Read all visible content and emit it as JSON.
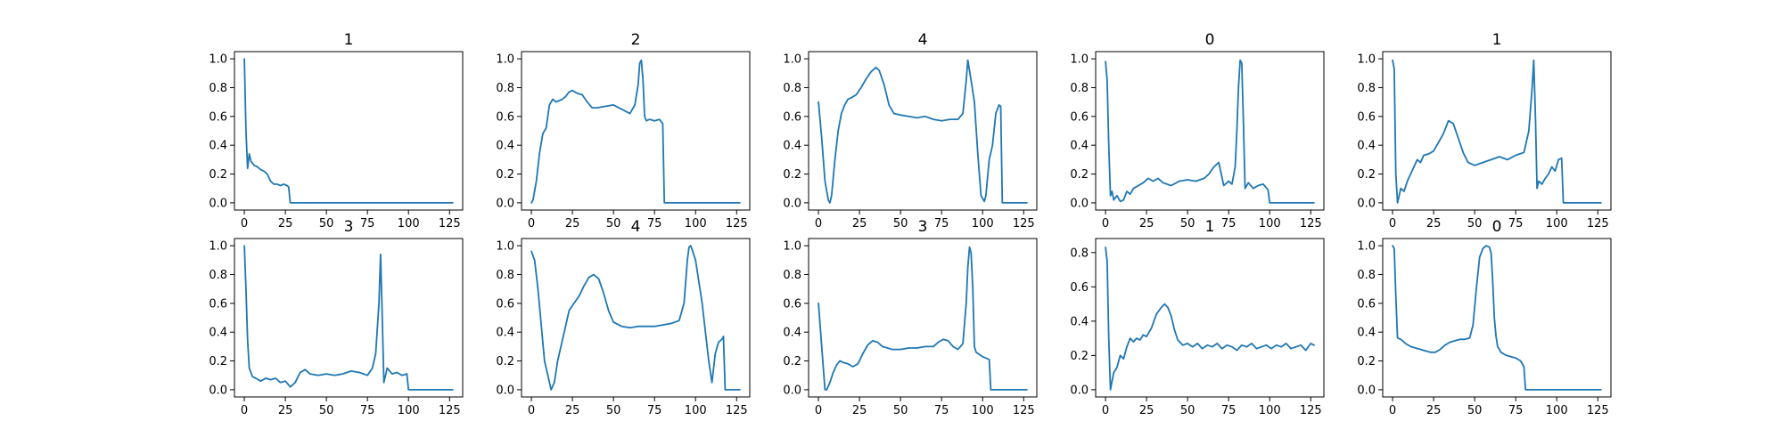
{
  "style": {
    "line_color": "#1f77b4"
  },
  "chart_data": [
    {
      "type": "line",
      "title": "1",
      "xlim": [
        -6,
        133
      ],
      "ylim": [
        -0.05,
        1.05
      ],
      "xticks": [
        0,
        25,
        50,
        75,
        100,
        125
      ],
      "yticks": [
        0.0,
        0.2,
        0.4,
        0.6,
        0.8,
        1.0
      ],
      "x": [
        0,
        1,
        2,
        3,
        4,
        6,
        8,
        10,
        12,
        14,
        16,
        18,
        20,
        22,
        24,
        26,
        27,
        28,
        40,
        60,
        80,
        100,
        127
      ],
      "values": [
        1.0,
        0.5,
        0.24,
        0.34,
        0.29,
        0.26,
        0.25,
        0.23,
        0.22,
        0.2,
        0.15,
        0.13,
        0.13,
        0.12,
        0.13,
        0.12,
        0.11,
        0.0,
        0.0,
        0.0,
        0.0,
        0.0,
        0.0
      ]
    },
    {
      "type": "line",
      "title": "2",
      "xlim": [
        -6,
        133
      ],
      "ylim": [
        -0.05,
        1.05
      ],
      "xticks": [
        0,
        25,
        50,
        75,
        100,
        125
      ],
      "yticks": [
        0.0,
        0.2,
        0.4,
        0.6,
        0.8,
        1.0
      ],
      "x": [
        0,
        1,
        3,
        5,
        7,
        9,
        11,
        13,
        15,
        17,
        19,
        21,
        23,
        25,
        28,
        31,
        34,
        37,
        40,
        45,
        50,
        55,
        60,
        63,
        65,
        66,
        67,
        68,
        69,
        70,
        72,
        75,
        78,
        80,
        81,
        90,
        100,
        110,
        127
      ],
      "values": [
        0.0,
        0.02,
        0.15,
        0.35,
        0.48,
        0.52,
        0.68,
        0.72,
        0.7,
        0.71,
        0.72,
        0.74,
        0.77,
        0.78,
        0.76,
        0.75,
        0.7,
        0.66,
        0.66,
        0.67,
        0.68,
        0.65,
        0.62,
        0.68,
        0.82,
        0.97,
        0.99,
        0.85,
        0.6,
        0.57,
        0.58,
        0.57,
        0.58,
        0.55,
        0.0,
        0.0,
        0.0,
        0.0,
        0.0
      ]
    },
    {
      "type": "line",
      "title": "4",
      "xlim": [
        -6,
        133
      ],
      "ylim": [
        -0.05,
        1.05
      ],
      "xticks": [
        0,
        25,
        50,
        75,
        100,
        125
      ],
      "yticks": [
        0.0,
        0.2,
        0.4,
        0.6,
        0.8,
        1.0
      ],
      "x": [
        0,
        2,
        4,
        6,
        7,
        8,
        10,
        12,
        14,
        16,
        18,
        20,
        23,
        26,
        29,
        32,
        35,
        37,
        40,
        43,
        46,
        50,
        55,
        60,
        65,
        70,
        75,
        80,
        85,
        88,
        90,
        91,
        93,
        95,
        97,
        99,
        101,
        102,
        104,
        106,
        108,
        110,
        111,
        112,
        113,
        115,
        127
      ],
      "values": [
        0.7,
        0.45,
        0.15,
        0.02,
        0.0,
        0.05,
        0.3,
        0.5,
        0.62,
        0.68,
        0.72,
        0.73,
        0.75,
        0.8,
        0.86,
        0.91,
        0.94,
        0.92,
        0.82,
        0.68,
        0.62,
        0.61,
        0.6,
        0.59,
        0.6,
        0.58,
        0.57,
        0.58,
        0.58,
        0.62,
        0.85,
        0.99,
        0.85,
        0.7,
        0.35,
        0.05,
        0.01,
        0.05,
        0.3,
        0.4,
        0.62,
        0.68,
        0.67,
        0.0,
        0.0,
        0.0,
        0.0
      ]
    },
    {
      "type": "line",
      "title": "0",
      "xlim": [
        -6,
        133
      ],
      "ylim": [
        -0.05,
        1.05
      ],
      "xticks": [
        0,
        25,
        50,
        75,
        100,
        125
      ],
      "yticks": [
        0.0,
        0.2,
        0.4,
        0.6,
        0.8,
        1.0
      ],
      "x": [
        0,
        1,
        2,
        3,
        4,
        5,
        7,
        9,
        11,
        13,
        15,
        17,
        20,
        23,
        26,
        29,
        32,
        35,
        40,
        45,
        50,
        55,
        60,
        63,
        66,
        69,
        72,
        75,
        77,
        79,
        80,
        81,
        82,
        83,
        84,
        85,
        87,
        90,
        93,
        96,
        99,
        100,
        110,
        127
      ],
      "values": [
        0.98,
        0.85,
        0.4,
        0.05,
        0.08,
        0.02,
        0.05,
        0.01,
        0.02,
        0.08,
        0.06,
        0.1,
        0.12,
        0.14,
        0.17,
        0.15,
        0.17,
        0.14,
        0.12,
        0.15,
        0.16,
        0.15,
        0.17,
        0.2,
        0.25,
        0.28,
        0.12,
        0.15,
        0.13,
        0.25,
        0.5,
        0.8,
        0.99,
        0.97,
        0.55,
        0.1,
        0.14,
        0.1,
        0.12,
        0.13,
        0.09,
        0.0,
        0.0,
        0.0
      ]
    },
    {
      "type": "line",
      "title": "1",
      "xlim": [
        -6,
        133
      ],
      "ylim": [
        -0.05,
        1.05
      ],
      "xticks": [
        0,
        25,
        50,
        75,
        100,
        125
      ],
      "yticks": [
        0.0,
        0.2,
        0.4,
        0.6,
        0.8,
        1.0
      ],
      "x": [
        0,
        1,
        2,
        3,
        5,
        7,
        9,
        11,
        13,
        15,
        17,
        19,
        22,
        25,
        28,
        31,
        34,
        37,
        40,
        43,
        46,
        50,
        55,
        60,
        65,
        70,
        75,
        80,
        83,
        85,
        86,
        87,
        88,
        89,
        91,
        93,
        95,
        97,
        99,
        101,
        103,
        104,
        115,
        127
      ],
      "values": [
        0.99,
        0.93,
        0.2,
        0.0,
        0.1,
        0.08,
        0.15,
        0.2,
        0.25,
        0.3,
        0.28,
        0.33,
        0.34,
        0.36,
        0.42,
        0.48,
        0.57,
        0.55,
        0.45,
        0.35,
        0.28,
        0.26,
        0.28,
        0.3,
        0.32,
        0.3,
        0.33,
        0.35,
        0.5,
        0.8,
        0.99,
        0.6,
        0.1,
        0.15,
        0.13,
        0.17,
        0.2,
        0.25,
        0.22,
        0.3,
        0.31,
        0.0,
        0.0,
        0.0
      ]
    },
    {
      "type": "line",
      "title": "3",
      "xlim": [
        -6,
        133
      ],
      "ylim": [
        -0.05,
        1.05
      ],
      "xticks": [
        0,
        25,
        50,
        75,
        100,
        125
      ],
      "yticks": [
        0.0,
        0.2,
        0.4,
        0.6,
        0.8,
        1.0
      ],
      "x": [
        0,
        1,
        2,
        3,
        5,
        7,
        10,
        13,
        16,
        19,
        22,
        25,
        28,
        31,
        34,
        37,
        40,
        45,
        50,
        55,
        60,
        65,
        70,
        75,
        78,
        80,
        82,
        83,
        84,
        85,
        87,
        90,
        93,
        96,
        99,
        100,
        110,
        127
      ],
      "values": [
        1.0,
        0.7,
        0.35,
        0.15,
        0.09,
        0.08,
        0.06,
        0.08,
        0.07,
        0.08,
        0.05,
        0.06,
        0.02,
        0.05,
        0.12,
        0.14,
        0.11,
        0.1,
        0.11,
        0.1,
        0.11,
        0.13,
        0.12,
        0.1,
        0.15,
        0.25,
        0.6,
        0.94,
        0.5,
        0.05,
        0.15,
        0.11,
        0.12,
        0.1,
        0.11,
        0.0,
        0.0,
        0.0
      ]
    },
    {
      "type": "line",
      "title": "4",
      "xlim": [
        -6,
        133
      ],
      "ylim": [
        -0.05,
        1.05
      ],
      "xticks": [
        0,
        25,
        50,
        75,
        100,
        125
      ],
      "yticks": [
        0.0,
        0.2,
        0.4,
        0.6,
        0.8,
        1.0
      ],
      "x": [
        0,
        2,
        4,
        6,
        8,
        10,
        12,
        14,
        16,
        18,
        20,
        23,
        26,
        29,
        32,
        35,
        38,
        41,
        44,
        47,
        50,
        55,
        60,
        65,
        70,
        75,
        80,
        85,
        90,
        93,
        95,
        96,
        97,
        98,
        100,
        102,
        104,
        106,
        108,
        110,
        112,
        114,
        116,
        117,
        118,
        127
      ],
      "values": [
        0.96,
        0.9,
        0.7,
        0.45,
        0.2,
        0.1,
        0.0,
        0.05,
        0.2,
        0.3,
        0.4,
        0.55,
        0.6,
        0.65,
        0.72,
        0.78,
        0.8,
        0.77,
        0.67,
        0.55,
        0.47,
        0.44,
        0.43,
        0.44,
        0.44,
        0.44,
        0.45,
        0.46,
        0.48,
        0.6,
        0.9,
        0.99,
        1.0,
        0.97,
        0.9,
        0.75,
        0.6,
        0.4,
        0.2,
        0.05,
        0.25,
        0.33,
        0.35,
        0.37,
        0.0,
        0.0
      ]
    },
    {
      "type": "line",
      "title": "3",
      "xlim": [
        -6,
        133
      ],
      "ylim": [
        -0.05,
        1.05
      ],
      "xticks": [
        0,
        25,
        50,
        75,
        100,
        125
      ],
      "yticks": [
        0.0,
        0.2,
        0.4,
        0.6,
        0.8,
        1.0
      ],
      "x": [
        0,
        2,
        4,
        5,
        7,
        9,
        11,
        13,
        15,
        18,
        21,
        24,
        27,
        30,
        33,
        36,
        39,
        42,
        45,
        50,
        55,
        60,
        65,
        70,
        73,
        76,
        79,
        82,
        85,
        88,
        90,
        91,
        92,
        93,
        94,
        95,
        96,
        100,
        104,
        105,
        115,
        127
      ],
      "values": [
        0.6,
        0.3,
        0.0,
        0.0,
        0.05,
        0.12,
        0.17,
        0.2,
        0.19,
        0.18,
        0.16,
        0.18,
        0.25,
        0.31,
        0.34,
        0.33,
        0.3,
        0.29,
        0.28,
        0.28,
        0.29,
        0.29,
        0.3,
        0.3,
        0.33,
        0.35,
        0.34,
        0.3,
        0.28,
        0.32,
        0.6,
        0.85,
        0.99,
        0.95,
        0.7,
        0.3,
        0.26,
        0.23,
        0.21,
        0.0,
        0.0,
        0.0
      ]
    },
    {
      "type": "line",
      "title": "1",
      "xlim": [
        -6,
        133
      ],
      "ylim": [
        -0.042,
        0.882
      ],
      "xticks": [
        0,
        25,
        50,
        75,
        100,
        125
      ],
      "yticks": [
        0.0,
        0.2,
        0.4,
        0.6,
        0.8
      ],
      "x": [
        0,
        1,
        2,
        3,
        4,
        5,
        7,
        9,
        11,
        13,
        15,
        17,
        19,
        21,
        23,
        25,
        28,
        31,
        34,
        36,
        38,
        40,
        42,
        44,
        47,
        50,
        53,
        56,
        59,
        62,
        65,
        68,
        71,
        74,
        77,
        80,
        83,
        86,
        89,
        92,
        95,
        98,
        101,
        104,
        107,
        110,
        113,
        116,
        119,
        122,
        125,
        127
      ],
      "values": [
        0.83,
        0.75,
        0.3,
        0.0,
        0.05,
        0.1,
        0.13,
        0.2,
        0.18,
        0.25,
        0.3,
        0.28,
        0.3,
        0.29,
        0.32,
        0.31,
        0.36,
        0.44,
        0.48,
        0.5,
        0.48,
        0.43,
        0.35,
        0.29,
        0.26,
        0.27,
        0.25,
        0.27,
        0.24,
        0.26,
        0.25,
        0.27,
        0.24,
        0.26,
        0.25,
        0.23,
        0.26,
        0.25,
        0.27,
        0.24,
        0.25,
        0.26,
        0.24,
        0.26,
        0.25,
        0.27,
        0.24,
        0.25,
        0.26,
        0.23,
        0.27,
        0.26
      ]
    },
    {
      "type": "line",
      "title": "0",
      "xlim": [
        -6,
        133
      ],
      "ylim": [
        -0.05,
        1.05
      ],
      "xticks": [
        0,
        25,
        50,
        75,
        100,
        125
      ],
      "yticks": [
        0.0,
        0.2,
        0.4,
        0.6,
        0.8,
        1.0
      ],
      "x": [
        0,
        1,
        2,
        3,
        5,
        8,
        11,
        14,
        17,
        20,
        23,
        26,
        29,
        32,
        35,
        38,
        41,
        44,
        47,
        49,
        51,
        53,
        55,
        57,
        59,
        60,
        61,
        62,
        63,
        64,
        66,
        69,
        72,
        75,
        78,
        80,
        81,
        95,
        110,
        127
      ],
      "values": [
        1.0,
        0.98,
        0.65,
        0.36,
        0.35,
        0.32,
        0.3,
        0.29,
        0.28,
        0.27,
        0.26,
        0.26,
        0.28,
        0.31,
        0.33,
        0.34,
        0.35,
        0.35,
        0.36,
        0.45,
        0.7,
        0.92,
        0.98,
        1.0,
        0.99,
        0.95,
        0.75,
        0.5,
        0.37,
        0.3,
        0.26,
        0.24,
        0.23,
        0.22,
        0.2,
        0.16,
        0.0,
        0.0,
        0.0,
        0.0
      ]
    }
  ]
}
